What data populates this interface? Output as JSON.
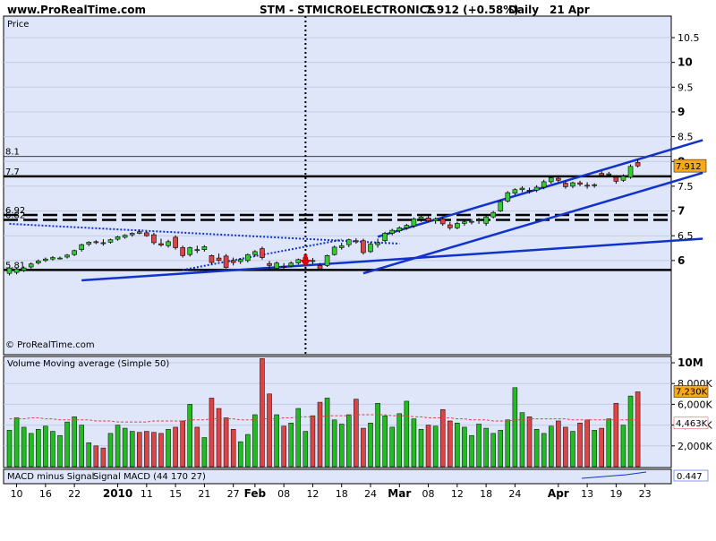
{
  "header": {
    "site": "www.ProRealTime.com",
    "title": "STM - STMICROELECTRONICS",
    "price_text": "7.912 (+0.58%)",
    "period": "Daily",
    "date": "21 Apr"
  },
  "chart_data": [
    {
      "type": "candlestick",
      "title": "STM - STMICROELECTRONICS",
      "panel_label": "Price",
      "watermark": "© ProRealTime.com",
      "ylim": [
        5.7,
        10.8
      ],
      "yticks": [
        6,
        6.5,
        7,
        7.5,
        8,
        8.5,
        9,
        9.5,
        10,
        10.5
      ],
      "current_price": 7.912,
      "current_price_label": "7.912",
      "horizontal_levels": [
        {
          "label": "8.1",
          "value": 8.1,
          "style": "thin"
        },
        {
          "label": "7.7",
          "value": 7.7,
          "style": "solid"
        },
        {
          "label": "6.92",
          "value": 6.92,
          "style": "dashed"
        },
        {
          "label": "6.82",
          "value": 6.82,
          "style": "dashed"
        },
        {
          "label": "5.81",
          "value": 5.81,
          "style": "solid"
        }
      ],
      "trendlines": [
        {
          "style": "dotted",
          "from": {
            "day": 0,
            "price": 6.74
          },
          "to": {
            "day": 54,
            "price": 6.34
          }
        },
        {
          "style": "dotted",
          "from": {
            "day": 24,
            "price": 5.81
          },
          "to": {
            "day": 46,
            "price": 6.42
          }
        },
        {
          "style": "solid",
          "from": {
            "day": 10,
            "price": 5.6
          },
          "to": {
            "day": 96,
            "price": 6.44
          }
        },
        {
          "style": "solid",
          "from": {
            "day": 51,
            "price": 6.48
          },
          "to": {
            "day": 96,
            "price": 8.43
          }
        },
        {
          "style": "solid",
          "from": {
            "day": 49,
            "price": 5.74
          },
          "to": {
            "day": 96,
            "price": 7.77
          }
        }
      ],
      "event_marker_day": 41,
      "candles": [
        {
          "o": 5.74,
          "h": 5.86,
          "l": 5.7,
          "c": 5.85
        },
        {
          "o": 5.76,
          "h": 5.86,
          "l": 5.72,
          "c": 5.83
        },
        {
          "o": 5.8,
          "h": 5.88,
          "l": 5.77,
          "c": 5.85
        },
        {
          "o": 5.87,
          "h": 5.96,
          "l": 5.84,
          "c": 5.93
        },
        {
          "o": 5.95,
          "h": 6.02,
          "l": 5.92,
          "c": 5.99
        },
        {
          "o": 6.0,
          "h": 6.06,
          "l": 5.97,
          "c": 6.03
        },
        {
          "o": 6.03,
          "h": 6.09,
          "l": 6.0,
          "c": 6.06
        },
        {
          "o": 6.05,
          "h": 6.08,
          "l": 6.02,
          "c": 6.05
        },
        {
          "o": 6.07,
          "h": 6.13,
          "l": 6.04,
          "c": 6.11
        },
        {
          "o": 6.12,
          "h": 6.22,
          "l": 6.09,
          "c": 6.2
        },
        {
          "o": 6.22,
          "h": 6.34,
          "l": 6.18,
          "c": 6.32
        },
        {
          "o": 6.33,
          "h": 6.39,
          "l": 6.29,
          "c": 6.37
        },
        {
          "o": 6.38,
          "h": 6.41,
          "l": 6.33,
          "c": 6.36
        },
        {
          "o": 6.36,
          "h": 6.43,
          "l": 6.3,
          "c": 6.34
        },
        {
          "o": 6.37,
          "h": 6.44,
          "l": 6.34,
          "c": 6.42
        },
        {
          "o": 6.43,
          "h": 6.5,
          "l": 6.4,
          "c": 6.48
        },
        {
          "o": 6.47,
          "h": 6.53,
          "l": 6.44,
          "c": 6.51
        },
        {
          "o": 6.52,
          "h": 6.57,
          "l": 6.48,
          "c": 6.55
        },
        {
          "o": 6.58,
          "h": 6.63,
          "l": 6.53,
          "c": 6.55
        },
        {
          "o": 6.56,
          "h": 6.6,
          "l": 6.48,
          "c": 6.5
        },
        {
          "o": 6.52,
          "h": 6.56,
          "l": 6.32,
          "c": 6.36
        },
        {
          "o": 6.34,
          "h": 6.44,
          "l": 6.28,
          "c": 6.31
        },
        {
          "o": 6.3,
          "h": 6.42,
          "l": 6.26,
          "c": 6.38
        },
        {
          "o": 6.47,
          "h": 6.51,
          "l": 6.22,
          "c": 6.26
        },
        {
          "o": 6.26,
          "h": 6.3,
          "l": 6.06,
          "c": 6.1
        },
        {
          "o": 6.12,
          "h": 6.28,
          "l": 6.08,
          "c": 6.26
        },
        {
          "o": 6.22,
          "h": 6.3,
          "l": 6.15,
          "c": 6.2
        },
        {
          "o": 6.22,
          "h": 6.31,
          "l": 6.18,
          "c": 6.28
        },
        {
          "o": 6.1,
          "h": 6.12,
          "l": 5.93,
          "c": 5.96
        },
        {
          "o": 6.05,
          "h": 6.14,
          "l": 5.98,
          "c": 6.0
        },
        {
          "o": 6.09,
          "h": 6.13,
          "l": 5.84,
          "c": 5.86
        },
        {
          "o": 6.0,
          "h": 6.06,
          "l": 5.9,
          "c": 5.96
        },
        {
          "o": 5.98,
          "h": 6.05,
          "l": 5.93,
          "c": 6.02
        },
        {
          "o": 6.0,
          "h": 6.14,
          "l": 5.96,
          "c": 6.12
        },
        {
          "o": 6.12,
          "h": 6.21,
          "l": 6.08,
          "c": 6.18
        },
        {
          "o": 6.24,
          "h": 6.28,
          "l": 6.02,
          "c": 6.06
        },
        {
          "o": 5.94,
          "h": 5.99,
          "l": 5.84,
          "c": 5.9
        },
        {
          "o": 5.84,
          "h": 5.98,
          "l": 5.8,
          "c": 5.95
        },
        {
          "o": 5.88,
          "h": 5.95,
          "l": 5.83,
          "c": 5.87
        },
        {
          "o": 5.89,
          "h": 5.98,
          "l": 5.86,
          "c": 5.95
        },
        {
          "o": 5.95,
          "h": 6.04,
          "l": 5.92,
          "c": 6.02
        },
        {
          "o": 6.0,
          "h": 6.08,
          "l": 5.94,
          "c": 6.06
        },
        {
          "o": 6.0,
          "h": 6.05,
          "l": 5.93,
          "c": 5.98
        },
        {
          "o": 5.9,
          "h": 5.95,
          "l": 5.8,
          "c": 5.83
        },
        {
          "o": 5.9,
          "h": 6.12,
          "l": 5.87,
          "c": 6.1
        },
        {
          "o": 6.12,
          "h": 6.3,
          "l": 6.1,
          "c": 6.27
        },
        {
          "o": 6.26,
          "h": 6.36,
          "l": 6.22,
          "c": 6.3
        },
        {
          "o": 6.32,
          "h": 6.44,
          "l": 6.27,
          "c": 6.42
        },
        {
          "o": 6.4,
          "h": 6.45,
          "l": 6.34,
          "c": 6.38
        },
        {
          "o": 6.4,
          "h": 6.44,
          "l": 6.12,
          "c": 6.16
        },
        {
          "o": 6.18,
          "h": 6.37,
          "l": 6.15,
          "c": 6.33
        },
        {
          "o": 6.32,
          "h": 6.44,
          "l": 6.26,
          "c": 6.36
        },
        {
          "o": 6.4,
          "h": 6.58,
          "l": 6.37,
          "c": 6.55
        },
        {
          "o": 6.55,
          "h": 6.64,
          "l": 6.51,
          "c": 6.61
        },
        {
          "o": 6.6,
          "h": 6.69,
          "l": 6.56,
          "c": 6.66
        },
        {
          "o": 6.66,
          "h": 6.74,
          "l": 6.62,
          "c": 6.71
        },
        {
          "o": 6.7,
          "h": 6.87,
          "l": 6.66,
          "c": 6.84
        },
        {
          "o": 6.84,
          "h": 6.91,
          "l": 6.78,
          "c": 6.88
        },
        {
          "o": 6.86,
          "h": 6.9,
          "l": 6.78,
          "c": 6.8
        },
        {
          "o": 6.8,
          "h": 6.87,
          "l": 6.74,
          "c": 6.84
        },
        {
          "o": 6.84,
          "h": 6.88,
          "l": 6.7,
          "c": 6.74
        },
        {
          "o": 6.72,
          "h": 6.78,
          "l": 6.62,
          "c": 6.66
        },
        {
          "o": 6.66,
          "h": 6.78,
          "l": 6.63,
          "c": 6.75
        },
        {
          "o": 6.75,
          "h": 6.81,
          "l": 6.7,
          "c": 6.78
        },
        {
          "o": 6.78,
          "h": 6.84,
          "l": 6.73,
          "c": 6.79
        },
        {
          "o": 6.8,
          "h": 6.86,
          "l": 6.74,
          "c": 6.82
        },
        {
          "o": 6.75,
          "h": 6.91,
          "l": 6.7,
          "c": 6.88
        },
        {
          "o": 6.88,
          "h": 7.0,
          "l": 6.85,
          "c": 6.97
        },
        {
          "o": 7.0,
          "h": 7.22,
          "l": 6.98,
          "c": 7.19
        },
        {
          "o": 7.2,
          "h": 7.4,
          "l": 7.17,
          "c": 7.37
        },
        {
          "o": 7.36,
          "h": 7.46,
          "l": 7.32,
          "c": 7.43
        },
        {
          "o": 7.43,
          "h": 7.5,
          "l": 7.38,
          "c": 7.46
        },
        {
          "o": 7.42,
          "h": 7.47,
          "l": 7.35,
          "c": 7.4
        },
        {
          "o": 7.42,
          "h": 7.52,
          "l": 7.38,
          "c": 7.48
        },
        {
          "o": 7.48,
          "h": 7.63,
          "l": 7.44,
          "c": 7.59
        },
        {
          "o": 7.59,
          "h": 7.71,
          "l": 7.55,
          "c": 7.67
        },
        {
          "o": 7.66,
          "h": 7.72,
          "l": 7.58,
          "c": 7.62
        },
        {
          "o": 7.56,
          "h": 7.6,
          "l": 7.45,
          "c": 7.49
        },
        {
          "o": 7.5,
          "h": 7.59,
          "l": 7.46,
          "c": 7.57
        },
        {
          "o": 7.57,
          "h": 7.61,
          "l": 7.5,
          "c": 7.54
        },
        {
          "o": 7.52,
          "h": 7.58,
          "l": 7.45,
          "c": 7.5
        },
        {
          "o": 7.52,
          "h": 7.56,
          "l": 7.47,
          "c": 7.53
        },
        {
          "o": 7.76,
          "h": 7.8,
          "l": 7.68,
          "c": 7.72
        },
        {
          "o": 7.73,
          "h": 7.79,
          "l": 7.69,
          "c": 7.75
        },
        {
          "o": 7.68,
          "h": 7.72,
          "l": 7.55,
          "c": 7.6
        },
        {
          "o": 7.62,
          "h": 7.74,
          "l": 7.59,
          "c": 7.7
        },
        {
          "o": 7.68,
          "h": 7.94,
          "l": 7.65,
          "c": 7.9
        },
        {
          "o": 7.98,
          "h": 8.04,
          "l": 7.88,
          "c": 7.91
        }
      ],
      "x_tick_labels": [
        {
          "day": 1,
          "label": "10"
        },
        {
          "day": 5,
          "label": "16"
        },
        {
          "day": 9,
          "label": "22"
        },
        {
          "day": 15,
          "label": "2010"
        },
        {
          "day": 19,
          "label": "11"
        },
        {
          "day": 23,
          "label": "15"
        },
        {
          "day": 27,
          "label": "21"
        },
        {
          "day": 31,
          "label": "27"
        },
        {
          "day": 34,
          "label": "Feb"
        },
        {
          "day": 38,
          "label": "08"
        },
        {
          "day": 42,
          "label": "12"
        },
        {
          "day": 46,
          "label": "18"
        },
        {
          "day": 50,
          "label": "24"
        },
        {
          "day": 54,
          "label": "Mar"
        },
        {
          "day": 58,
          "label": "08"
        },
        {
          "day": 62,
          "label": "12"
        },
        {
          "day": 66,
          "label": "18"
        },
        {
          "day": 70,
          "label": "24"
        },
        {
          "day": 76,
          "label": "Apr"
        },
        {
          "day": 80,
          "label": "13"
        },
        {
          "day": 84,
          "label": "19"
        },
        {
          "day": 88,
          "label": "23"
        }
      ]
    },
    {
      "type": "bar",
      "title": "Volume",
      "legend": [
        "Volume",
        "Moving average (Simple 50)"
      ],
      "yticks": [
        {
          "value": 2000000,
          "label": "2,000K"
        },
        {
          "value": 4000000,
          "label": "4,000K"
        },
        {
          "value": 6000000,
          "label": "6,000K"
        },
        {
          "value": 8000000,
          "label": "8,000K"
        },
        {
          "value": 10000000,
          "label": "10M"
        }
      ],
      "ylim": [
        0,
        11000000
      ],
      "last_volume_label": "7,230K",
      "ma_label": "4,463K",
      "volumes": [
        3.5,
        4.7,
        3.8,
        3.2,
        3.6,
        3.9,
        3.4,
        3.0,
        4.3,
        4.8,
        4.0,
        2.3,
        2.0,
        1.8,
        3.2,
        4.0,
        3.7,
        3.4,
        3.3,
        3.4,
        3.3,
        3.2,
        3.6,
        3.8,
        4.4,
        6.0,
        3.8,
        2.8,
        6.6,
        5.6,
        4.7,
        3.6,
        2.4,
        3.1,
        5.0,
        10.4,
        7.0,
        5.0,
        3.9,
        4.2,
        5.6,
        3.4,
        4.9,
        6.2,
        6.6,
        4.5,
        4.1,
        5.0,
        6.5,
        3.7,
        4.2,
        6.1,
        4.9,
        3.8,
        5.1,
        6.3,
        4.6,
        3.6,
        4.0,
        3.9,
        5.5,
        4.4,
        4.2,
        3.8,
        3.0,
        4.1,
        3.7,
        3.2,
        3.5,
        4.5,
        7.6,
        5.2,
        4.8,
        3.6,
        3.2,
        3.9,
        4.4,
        3.8,
        3.4,
        4.2,
        4.5,
        3.5,
        3.7,
        4.6,
        6.1,
        4.0,
        6.8,
        7.2
      ],
      "ma": [
        4.6,
        4.6,
        4.6,
        4.7,
        4.7,
        4.6,
        4.6,
        4.5,
        4.5,
        4.5,
        4.5,
        4.5,
        4.4,
        4.4,
        4.4,
        4.3,
        4.3,
        4.3,
        4.3,
        4.3,
        4.4,
        4.4,
        4.4,
        4.4,
        4.4,
        4.5,
        4.5,
        4.5,
        4.6,
        4.6,
        4.6,
        4.6,
        4.5,
        4.5,
        4.5,
        4.6,
        4.6,
        4.6,
        4.7,
        4.7,
        4.8,
        4.8,
        4.8,
        4.8,
        4.9,
        4.9,
        4.9,
        4.9,
        5.0,
        5.0,
        5.0,
        5.0,
        5.0,
        4.9,
        4.9,
        4.9,
        4.8,
        4.8,
        4.7,
        4.7,
        4.7,
        4.7,
        4.6,
        4.6,
        4.5,
        4.5,
        4.5,
        4.4,
        4.4,
        4.4,
        4.5,
        4.5,
        4.6,
        4.6,
        4.6,
        4.6,
        4.6,
        4.6,
        4.5,
        4.5,
        4.5,
        4.5,
        4.5,
        4.5,
        4.5,
        4.5,
        4.5,
        4.5
      ],
      "color_up": "#22bb22",
      "color_down": "#dd4444"
    },
    {
      "type": "line",
      "title": "MACD",
      "legend": [
        "MACD minus Signal",
        "Signal",
        "MACD (44 170 27)"
      ],
      "value_label": "0.447"
    }
  ],
  "colors": {
    "panel_bg": "#dfe6f9",
    "candle_up": "#33cc33",
    "candle_down": "#dd4444",
    "trendline": "#1133cc",
    "current_price_bg": "#f7a81b",
    "marker_arrow": "#dd0000"
  }
}
